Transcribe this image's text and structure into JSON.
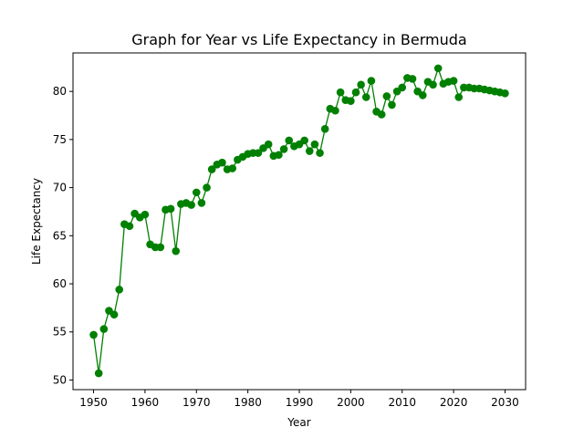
{
  "chart_data": {
    "type": "line",
    "title": "Graph for Year vs Life Expectancy in Bermuda",
    "xlabel": "Year",
    "ylabel": "Life Expectancy",
    "xlim": [
      1946,
      2034
    ],
    "ylim": [
      49,
      84
    ],
    "xticks": [
      1950,
      1960,
      1970,
      1980,
      1990,
      2000,
      2010,
      2020,
      2030
    ],
    "yticks": [
      50,
      55,
      60,
      65,
      70,
      75,
      80
    ],
    "grid": false,
    "marker": "circle",
    "color": "#008000",
    "series": [
      {
        "x": [
          1950,
          1951,
          1952,
          1953,
          1954,
          1955,
          1956,
          1957,
          1958,
          1959,
          1960,
          1961,
          1962,
          1963,
          1964,
          1965,
          1966,
          1967,
          1968,
          1969,
          1970,
          1971,
          1972,
          1973,
          1974,
          1975,
          1976,
          1977,
          1978,
          1979,
          1980,
          1981,
          1982,
          1983,
          1984,
          1985,
          1986,
          1987,
          1988,
          1989,
          1990,
          1991,
          1992,
          1993,
          1994,
          1995,
          1996,
          1997,
          1998,
          1999,
          2000,
          2001,
          2002,
          2003,
          2004,
          2005,
          2006,
          2007,
          2008,
          2009,
          2010,
          2011,
          2012,
          2013,
          2014,
          2015,
          2016,
          2017,
          2018,
          2019,
          2020,
          2021,
          2022,
          2023,
          2024,
          2025,
          2026,
          2027,
          2028,
          2029,
          2030
        ],
        "y": [
          54.7,
          50.7,
          55.3,
          57.2,
          56.8,
          59.4,
          66.2,
          66.0,
          67.3,
          66.9,
          67.2,
          64.1,
          63.8,
          63.8,
          67.7,
          67.8,
          63.4,
          68.3,
          68.4,
          68.2,
          69.5,
          68.4,
          70.0,
          71.9,
          72.4,
          72.6,
          71.9,
          72.0,
          72.9,
          73.2,
          73.5,
          73.6,
          73.6,
          74.1,
          74.5,
          73.3,
          73.4,
          74.0,
          74.9,
          74.3,
          74.5,
          74.9,
          73.8,
          74.5,
          73.6,
          76.1,
          78.2,
          78.0,
          79.9,
          79.1,
          79.0,
          79.9,
          80.7,
          79.4,
          81.1,
          77.9,
          77.6,
          79.5,
          78.6,
          80.0,
          80.4,
          81.4,
          81.3,
          80.0,
          79.6,
          81.0,
          80.7,
          82.4,
          80.8,
          81.0,
          81.1,
          79.4,
          80.4,
          80.4,
          80.3,
          80.3,
          80.2,
          80.1,
          80.0,
          79.9,
          79.8
        ]
      }
    ]
  }
}
